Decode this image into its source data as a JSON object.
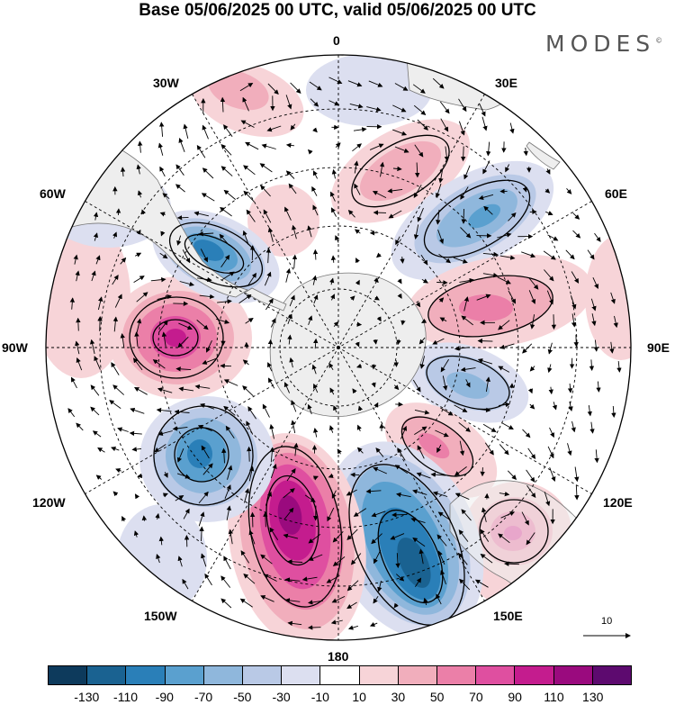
{
  "title": "Base 05/06/2025 00 UTC, valid 05/06/2025 00 UTC",
  "brand": "MODES",
  "brand_mark": "©",
  "longitude_labels": [
    "0",
    "30E",
    "60E",
    "90E",
    "120E",
    "150E",
    "180",
    "150W",
    "120W",
    "90W",
    "60W",
    "30W"
  ],
  "reference_vector_label": "10",
  "colorbar": {
    "tick_labels": [
      "-130",
      "-110",
      "-90",
      "-70",
      "-50",
      "-30",
      "-10",
      "10",
      "30",
      "50",
      "70",
      "90",
      "110",
      "130"
    ],
    "colors": [
      "#0d3a5c",
      "#1a6291",
      "#2a7fb8",
      "#5aa0cf",
      "#8fb7dc",
      "#b9c9e6",
      "#dcdff0",
      "#ffffff",
      "#f7d4d8",
      "#f1aebc",
      "#eb7fa8",
      "#df4fa0",
      "#c41c8e",
      "#9a0a7e",
      "#5d0a6f"
    ]
  },
  "map": {
    "projection": "south-polar-stereographic",
    "ocean_color": "#ffffff",
    "land_color": "#eeeeee",
    "anomaly_centers": [
      {
        "name": "negative-center-south-america",
        "sign": "negative",
        "color": "#2a7fb8"
      },
      {
        "name": "positive-center-90w",
        "sign": "positive",
        "color": "#c41c8e"
      },
      {
        "name": "negative-center-120w",
        "sign": "negative",
        "color": "#2a7fb8"
      },
      {
        "name": "positive-center-165w",
        "sign": "positive",
        "color": "#9a0a7e"
      },
      {
        "name": "negative-center-155e",
        "sign": "negative",
        "color": "#1a6291"
      },
      {
        "name": "positive-center-australia",
        "sign": "positive",
        "color": "#df4fa0"
      },
      {
        "name": "positive-center-110e",
        "sign": "positive",
        "color": "#eb7fa8"
      },
      {
        "name": "negative-center-100e",
        "sign": "negative",
        "color": "#5aa0cf"
      },
      {
        "name": "positive-center-75e",
        "sign": "positive",
        "color": "#eb7fa8"
      },
      {
        "name": "negative-center-45e",
        "sign": "negative",
        "color": "#5aa0cf"
      },
      {
        "name": "positive-center-20e",
        "sign": "positive",
        "color": "#f1aebc"
      },
      {
        "name": "positive-center-15w",
        "sign": "positive",
        "color": "#f1aebc"
      }
    ]
  }
}
